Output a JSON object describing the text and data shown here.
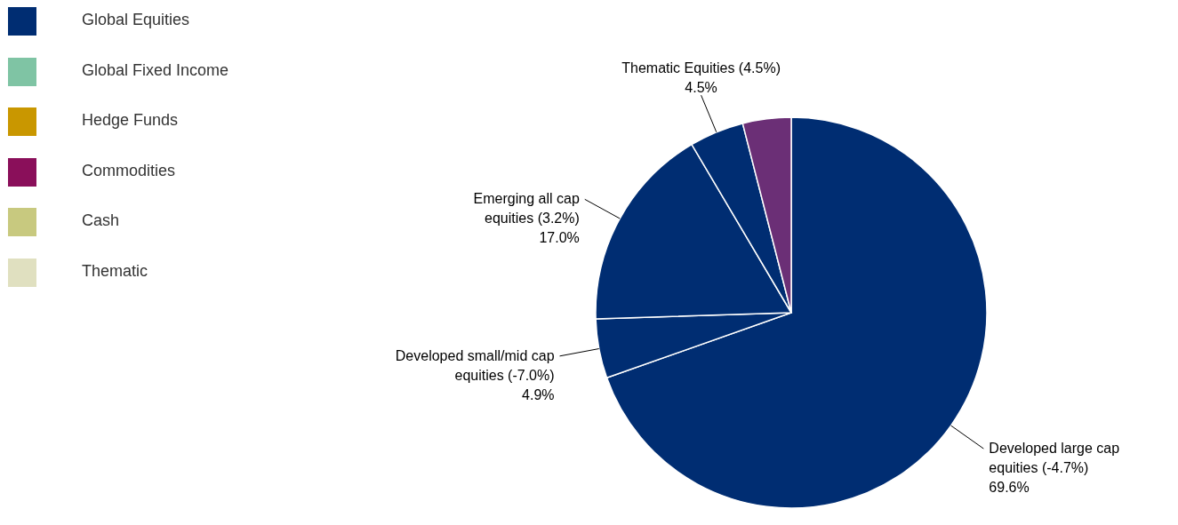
{
  "chart_data": [
    {
      "type": "other",
      "categories": [
        "Global Equities",
        "Global Fixed Income",
        "Hedge Funds",
        "Commodities",
        "Cash",
        "Thematic"
      ],
      "colors": [
        "#002d72",
        "#7fc4a4",
        "#c99700",
        "#8a0f5a",
        "#c8c97f",
        "#e0e0c0"
      ]
    },
    {
      "type": "pie",
      "categories": [
        "Developed large cap equities (-4.7%)",
        "Developed small/mid cap equities (-7.0%)",
        "Emerging all cap equities (3.2%)",
        "Thematic Equities (4.5%)",
        null
      ],
      "values": [
        69.6,
        4.9,
        17.0,
        4.5,
        4.0
      ],
      "value_labels": [
        "69.6%",
        "4.9%",
        "17.0%",
        "4.5%",
        null
      ],
      "colors": [
        "#002d72",
        "#002d72",
        "#002d72",
        "#002d72",
        "#6b2f76"
      ]
    }
  ]
}
